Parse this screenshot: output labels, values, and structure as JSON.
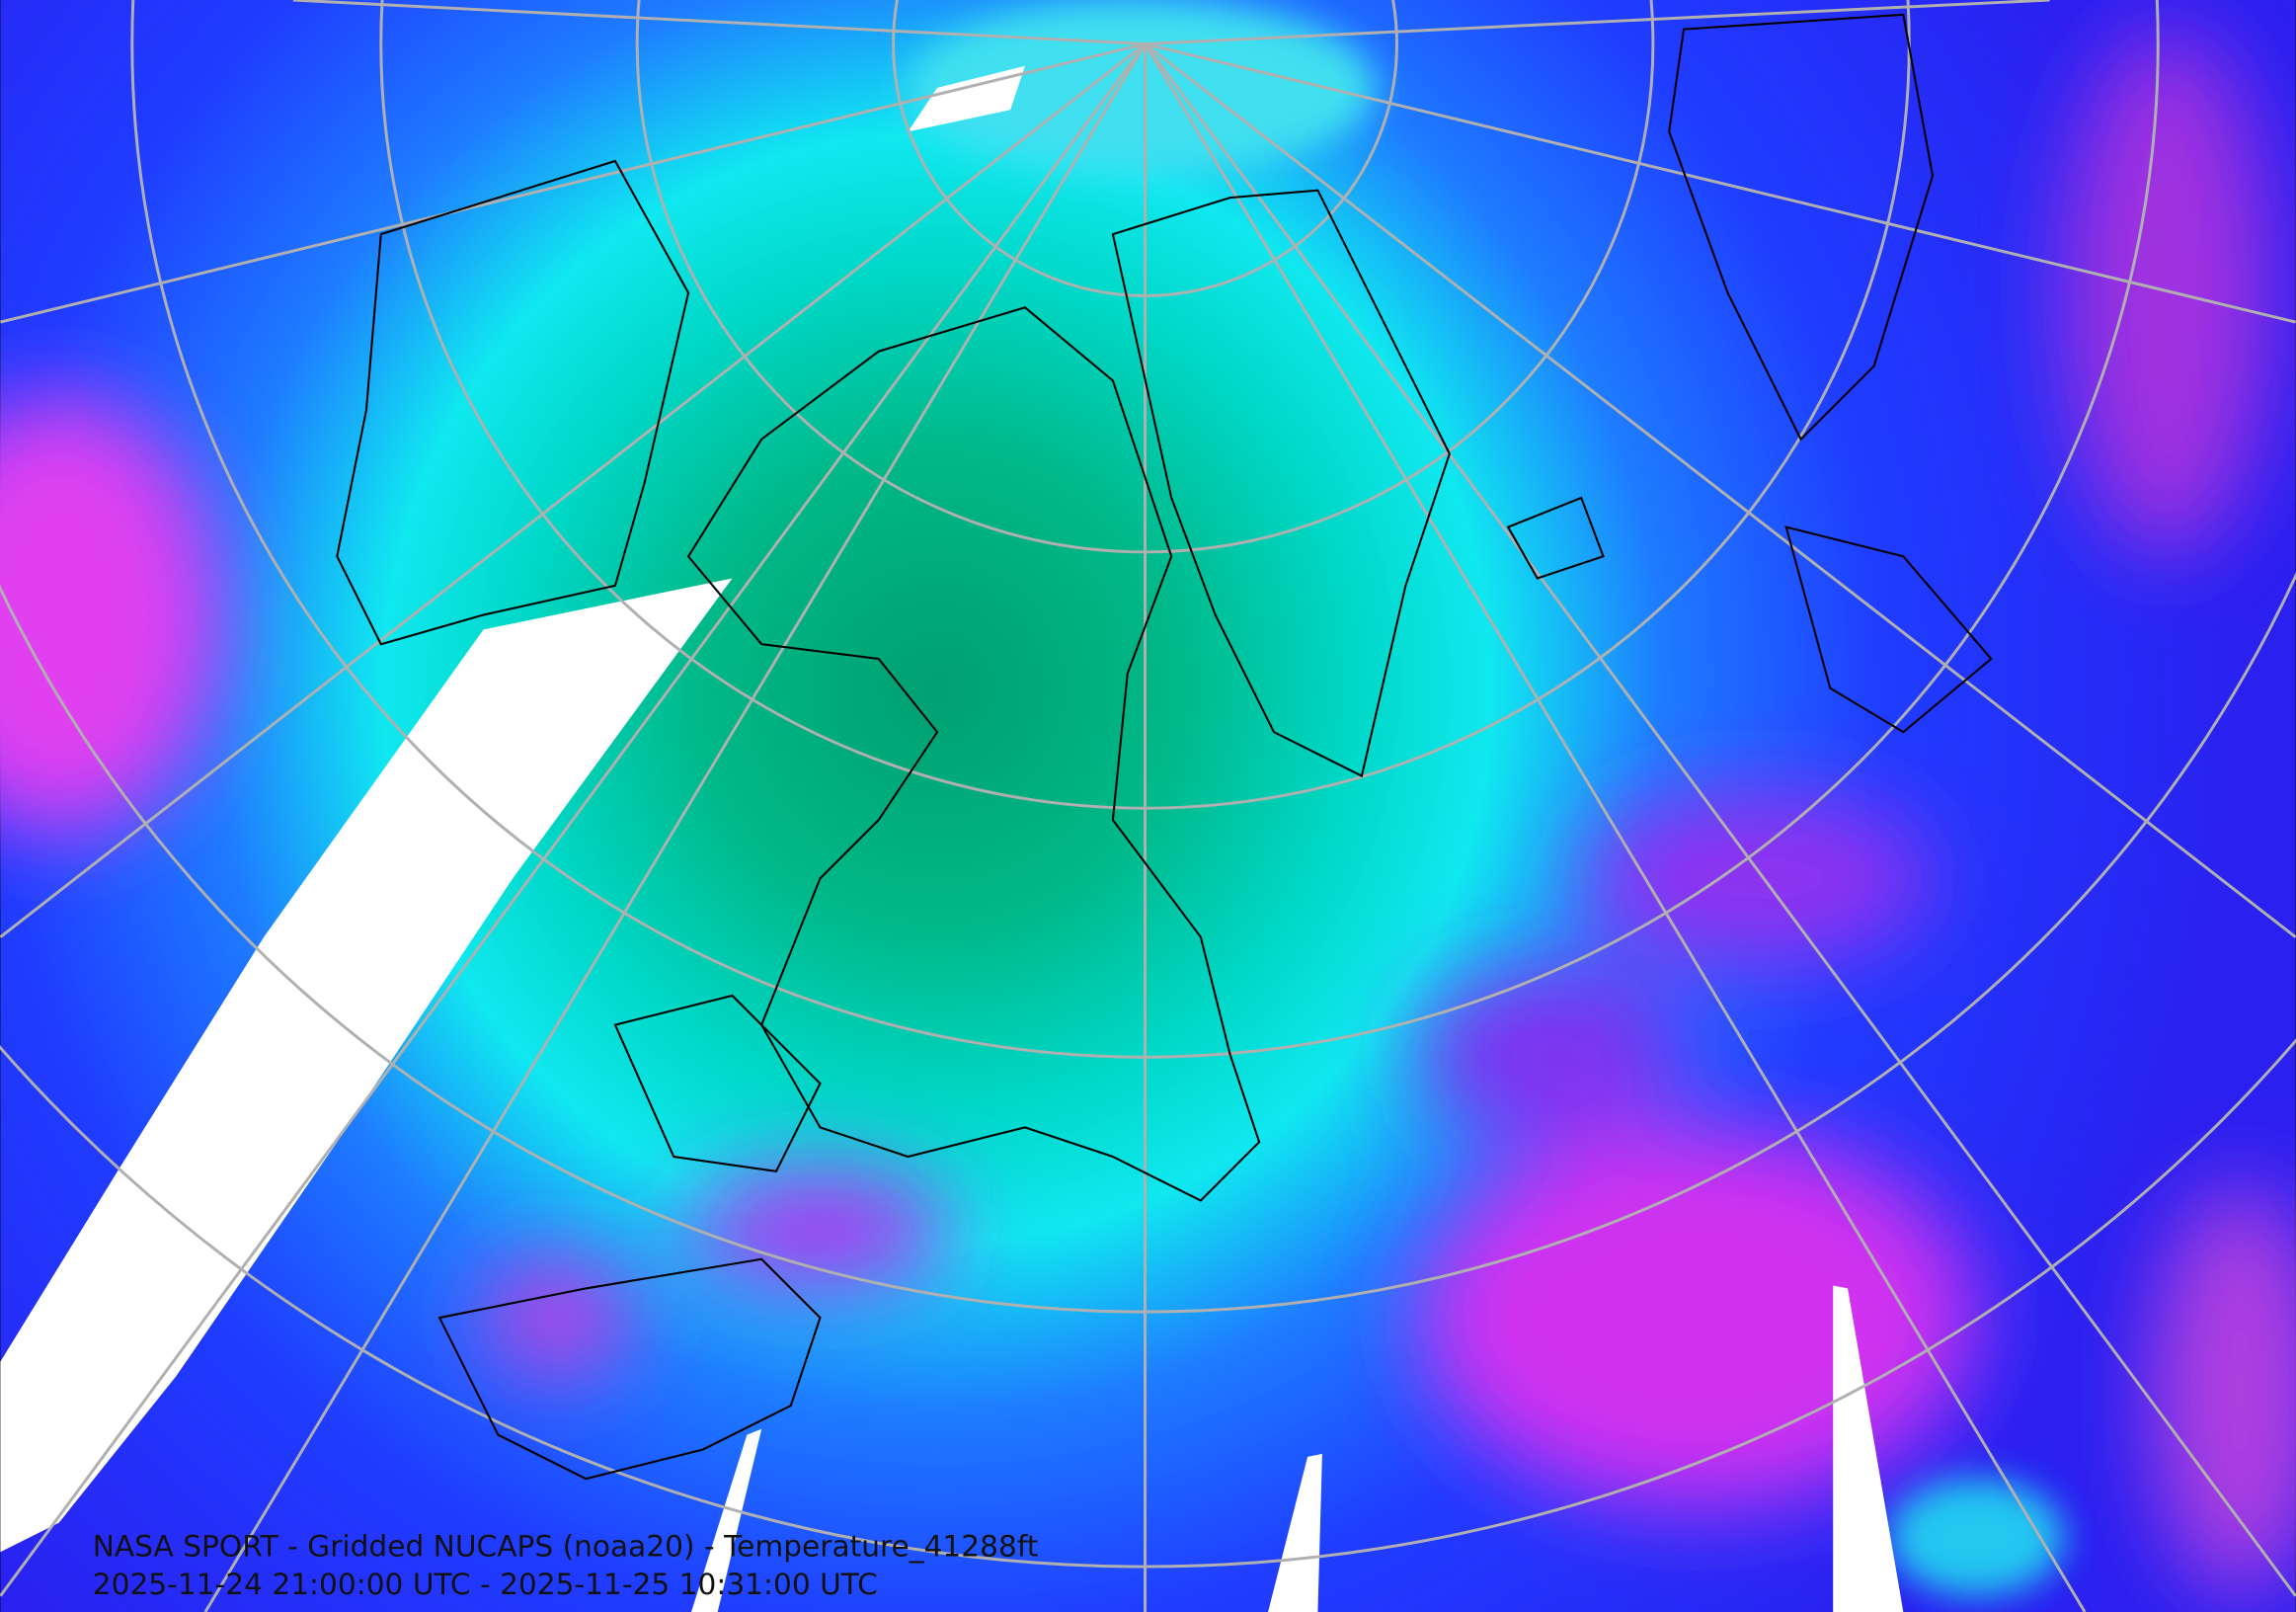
{
  "caption": {
    "title": "NASA SPORT - Gridded NUCAPS (noaa20) - Temperature_41288ft",
    "time_range": "2025-11-24 21:00:00 UTC - 2025-11-25 10:31:00 UTC"
  }
}
